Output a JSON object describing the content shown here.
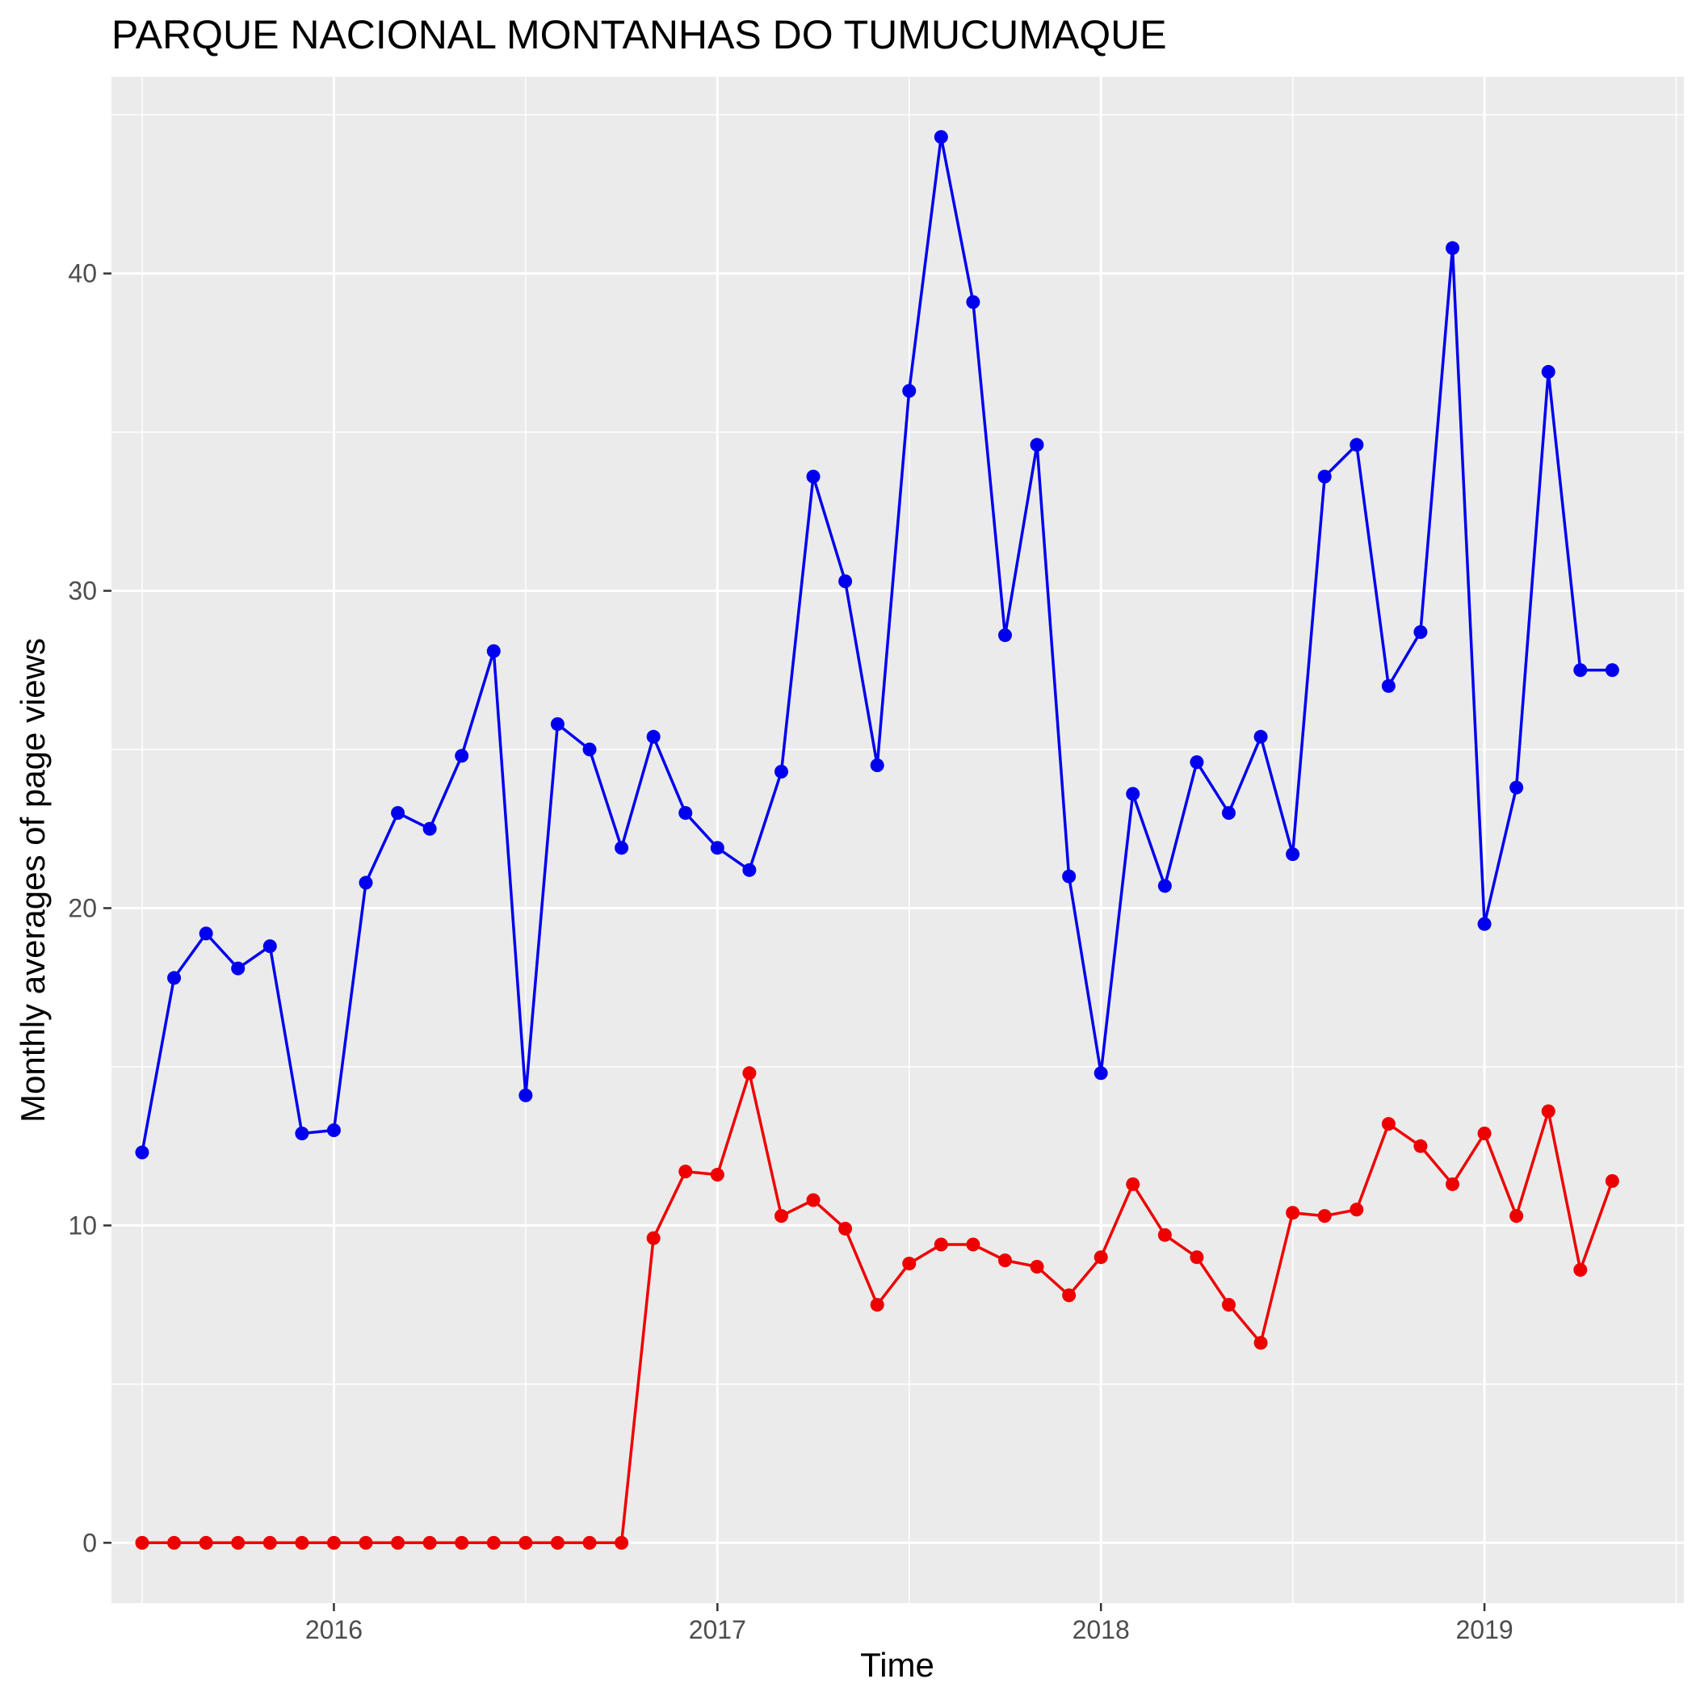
{
  "chart_data": {
    "type": "line",
    "title": "PARQUE NACIONAL MONTANHAS DO TUMUCUMAQUE",
    "xlabel": "Time",
    "ylabel": "Monthly averages of page views",
    "xlim": [
      2015.42,
      2019.52
    ],
    "ylim": [
      -1.9,
      46.2
    ],
    "x_ticks": [
      2016,
      2017,
      2018,
      2019
    ],
    "x_tick_labels": [
      "2016",
      "2017",
      "2018",
      "2019"
    ],
    "y_ticks": [
      0,
      10,
      20,
      30,
      40
    ],
    "y_tick_labels": [
      "0",
      "10",
      "20",
      "30",
      "40"
    ],
    "grid": true,
    "legend": "none",
    "background": "#EBEBEB",
    "gridline_color": "#FFFFFF",
    "x": [
      2015.5,
      2015.5833,
      2015.6667,
      2015.75,
      2015.8333,
      2015.9167,
      2016.0,
      2016.0833,
      2016.1667,
      2016.25,
      2016.3333,
      2016.4167,
      2016.5,
      2016.5833,
      2016.6667,
      2016.75,
      2016.8333,
      2016.9167,
      2017.0,
      2017.0833,
      2017.1667,
      2017.25,
      2017.3333,
      2017.4167,
      2017.5,
      2017.5833,
      2017.6667,
      2017.75,
      2017.8333,
      2017.9167,
      2018.0,
      2018.0833,
      2018.1667,
      2018.25,
      2018.3333,
      2018.4167,
      2018.5,
      2018.5833,
      2018.6667,
      2018.75,
      2018.8333,
      2018.9167,
      2019.0,
      2019.0833,
      2019.1667,
      2019.25,
      2019.3333
    ],
    "series": [
      {
        "color": "#0000EE",
        "values": [
          12.3,
          17.8,
          19.2,
          18.1,
          18.8,
          12.9,
          13.0,
          20.8,
          23.0,
          22.5,
          24.8,
          28.1,
          14.1,
          25.8,
          25.0,
          21.9,
          25.4,
          23.0,
          21.9,
          21.2,
          24.3,
          33.6,
          30.3,
          24.5,
          36.3,
          44.3,
          39.1,
          28.6,
          34.6,
          21.0,
          14.8,
          23.6,
          20.7,
          24.6,
          23.0,
          25.4,
          21.7,
          33.6,
          34.6,
          27.0,
          28.7,
          40.8,
          19.5,
          23.8,
          36.9,
          27.5,
          27.5
        ]
      },
      {
        "color": "#EE0000",
        "values": [
          0,
          0,
          0,
          0,
          0,
          0,
          0,
          0,
          0,
          0,
          0,
          0,
          0,
          0,
          0,
          0,
          9.6,
          11.7,
          11.6,
          14.8,
          10.3,
          10.8,
          9.9,
          7.5,
          8.8,
          9.4,
          9.4,
          8.9,
          8.7,
          7.8,
          9.0,
          11.3,
          9.7,
          9.0,
          7.5,
          6.3,
          10.4,
          10.3,
          10.5,
          13.2,
          12.5,
          11.3,
          12.9,
          10.3,
          13.6,
          8.6,
          11.4
        ]
      }
    ]
  }
}
